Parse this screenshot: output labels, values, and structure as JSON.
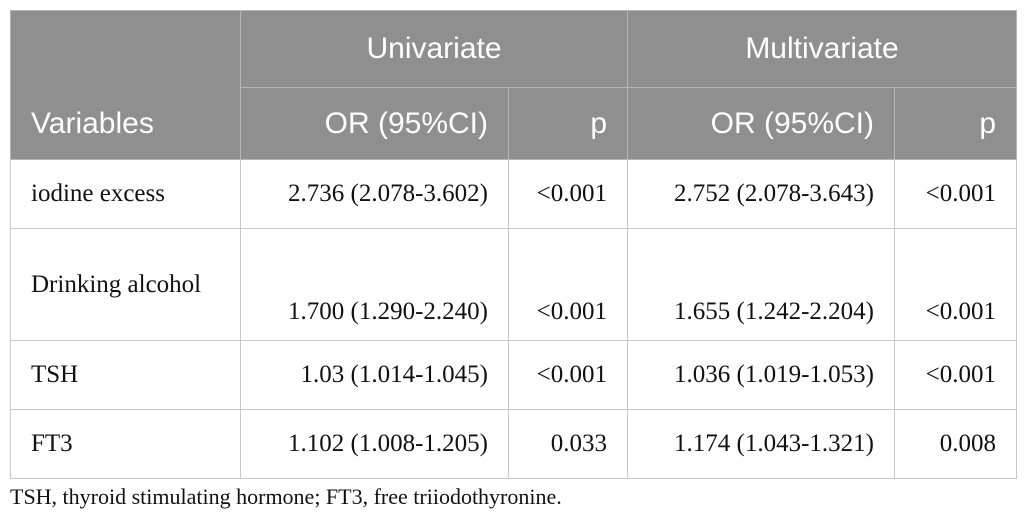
{
  "header": {
    "variables": "Variables",
    "groups": [
      "Univariate",
      "Multivariate"
    ],
    "subheaders": [
      "OR (95%CI)",
      "p",
      "OR (95%CI)",
      "p"
    ]
  },
  "rows": [
    {
      "variable": "iodine excess",
      "uni_or": "2.736 (2.078-3.602)",
      "uni_p": "<0.001",
      "multi_or": "2.752 (2.078-3.643)",
      "multi_p": "<0.001"
    },
    {
      "variable": "Drinking alcohol",
      "uni_or": "1.700 (1.290-2.240)",
      "uni_p": "<0.001",
      "multi_or": "1.655 (1.242-2.204)",
      "multi_p": "<0.001"
    },
    {
      "variable": "TSH",
      "uni_or": "1.03 (1.014-1.045)",
      "uni_p": "<0.001",
      "multi_or": "1.036 (1.019-1.053)",
      "multi_p": "<0.001"
    },
    {
      "variable": "FT3",
      "uni_or": "1.102 (1.008-1.205)",
      "uni_p": "0.033",
      "multi_or": "1.174 (1.043-1.321)",
      "multi_p": "0.008"
    }
  ],
  "footnote": "TSH, thyroid stimulating hormone; FT3, free triiodothyronine."
}
